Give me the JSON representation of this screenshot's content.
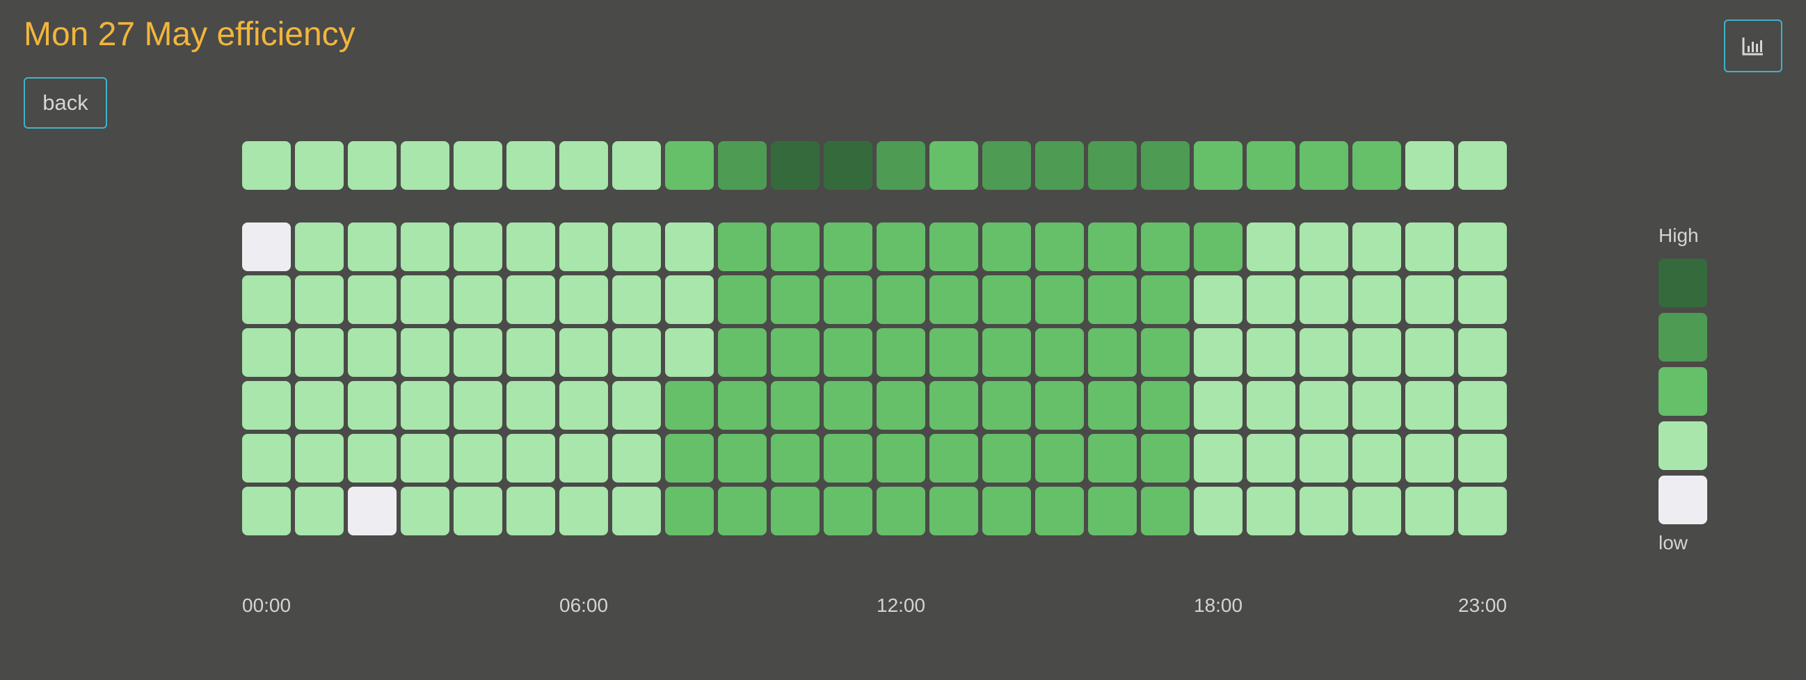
{
  "header": {
    "title": "Mon 27 May efficiency",
    "back_label": "back",
    "chart_toggle_icon": "bar-chart-icon"
  },
  "colors": {
    "background": "#4a4a48",
    "title": "#f2b53c",
    "button_border": "#3fb3c9",
    "levels": [
      "#eeeef2",
      "#a8e6ab",
      "#66bf69",
      "#4e9b53",
      "#356b3c"
    ]
  },
  "chart_data": {
    "type": "heatmap",
    "x_ticks": [
      {
        "index": 0,
        "label": "00:00"
      },
      {
        "index": 6,
        "label": "06:00"
      },
      {
        "index": 12,
        "label": "12:00"
      },
      {
        "index": 18,
        "label": "18:00"
      },
      {
        "index": 23,
        "label": "23:00"
      }
    ],
    "level_scale": [
      0,
      1,
      2,
      3,
      4
    ],
    "legend": {
      "high_label": "High",
      "low_label": "low",
      "placement": "right"
    },
    "summary_row": [
      1,
      1,
      1,
      1,
      1,
      1,
      1,
      1,
      2,
      3,
      4,
      4,
      3,
      2,
      3,
      3,
      3,
      3,
      2,
      2,
      2,
      2,
      1,
      1
    ],
    "rows": [
      [
        0,
        1,
        1,
        1,
        1,
        1,
        1,
        1,
        1,
        2,
        2,
        2,
        2,
        2,
        2,
        2,
        2,
        2,
        2,
        1,
        1,
        1,
        1,
        1
      ],
      [
        1,
        1,
        1,
        1,
        1,
        1,
        1,
        1,
        1,
        2,
        2,
        2,
        2,
        2,
        2,
        2,
        2,
        2,
        1,
        1,
        1,
        1,
        1,
        1
      ],
      [
        1,
        1,
        1,
        1,
        1,
        1,
        1,
        1,
        1,
        2,
        2,
        2,
        2,
        2,
        2,
        2,
        2,
        2,
        1,
        1,
        1,
        1,
        1,
        1
      ],
      [
        1,
        1,
        1,
        1,
        1,
        1,
        1,
        1,
        2,
        2,
        2,
        2,
        2,
        2,
        2,
        2,
        2,
        2,
        1,
        1,
        1,
        1,
        1,
        1
      ],
      [
        1,
        1,
        1,
        1,
        1,
        1,
        1,
        1,
        2,
        2,
        2,
        2,
        2,
        2,
        2,
        2,
        2,
        2,
        1,
        1,
        1,
        1,
        1,
        1
      ],
      [
        1,
        1,
        0,
        1,
        1,
        1,
        1,
        1,
        2,
        2,
        2,
        2,
        2,
        2,
        2,
        2,
        2,
        2,
        1,
        1,
        1,
        1,
        1,
        1
      ]
    ]
  }
}
